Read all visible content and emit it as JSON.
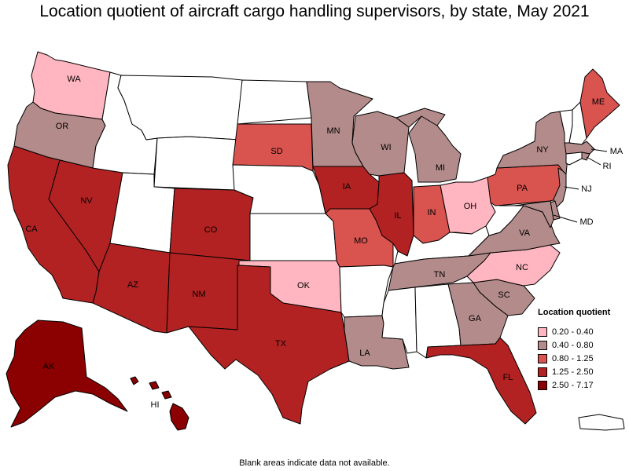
{
  "title": "Location quotient of aircraft cargo handling supervisors, by state, May 2021",
  "footnote": "Blank areas indicate data not available.",
  "legend": {
    "title": "Location quotient",
    "items": [
      {
        "label": "0.20 - 0.40",
        "color": "#ffb6c1"
      },
      {
        "label": "0.40 - 0.80",
        "color": "#b38b8b"
      },
      {
        "label": "0.80 - 1.25",
        "color": "#d9534f"
      },
      {
        "label": "1.25 - 2.50",
        "color": "#b22222"
      },
      {
        "label": "2.50 - 7.17",
        "color": "#8b0000"
      }
    ]
  },
  "no_data_color": "#ffffff",
  "states": [
    {
      "code": "WA",
      "label": "WA",
      "bin": 0
    },
    {
      "code": "OR",
      "label": "OR",
      "bin": 1
    },
    {
      "code": "CA",
      "label": "CA",
      "bin": 3
    },
    {
      "code": "NV",
      "label": "NV",
      "bin": 3
    },
    {
      "code": "ID",
      "label": "",
      "bin": null
    },
    {
      "code": "MT",
      "label": "",
      "bin": null
    },
    {
      "code": "WY",
      "label": "",
      "bin": null
    },
    {
      "code": "UT",
      "label": "",
      "bin": null
    },
    {
      "code": "AZ",
      "label": "AZ",
      "bin": 3
    },
    {
      "code": "CO",
      "label": "CO",
      "bin": 3
    },
    {
      "code": "NM",
      "label": "NM",
      "bin": 3
    },
    {
      "code": "ND",
      "label": "",
      "bin": null
    },
    {
      "code": "SD",
      "label": "SD",
      "bin": 2
    },
    {
      "code": "NE",
      "label": "",
      "bin": null
    },
    {
      "code": "KS",
      "label": "",
      "bin": null
    },
    {
      "code": "OK",
      "label": "OK",
      "bin": 0
    },
    {
      "code": "TX",
      "label": "TX",
      "bin": 3
    },
    {
      "code": "MN",
      "label": "MN",
      "bin": 1
    },
    {
      "code": "IA",
      "label": "IA",
      "bin": 3
    },
    {
      "code": "MO",
      "label": "MO",
      "bin": 2
    },
    {
      "code": "AR",
      "label": "",
      "bin": null
    },
    {
      "code": "LA",
      "label": "LA",
      "bin": 1
    },
    {
      "code": "WI",
      "label": "WI",
      "bin": 1
    },
    {
      "code": "IL",
      "label": "IL",
      "bin": 3
    },
    {
      "code": "MI",
      "label": "MI",
      "bin": 1
    },
    {
      "code": "IN",
      "label": "IN",
      "bin": 2
    },
    {
      "code": "OH",
      "label": "OH",
      "bin": 0
    },
    {
      "code": "KY",
      "label": "",
      "bin": null
    },
    {
      "code": "TN",
      "label": "TN",
      "bin": 1
    },
    {
      "code": "MS",
      "label": "",
      "bin": null
    },
    {
      "code": "AL",
      "label": "",
      "bin": null
    },
    {
      "code": "GA",
      "label": "GA",
      "bin": 1
    },
    {
      "code": "FL",
      "label": "FL",
      "bin": 3
    },
    {
      "code": "SC",
      "label": "SC",
      "bin": 1
    },
    {
      "code": "NC",
      "label": "NC",
      "bin": 0
    },
    {
      "code": "VA",
      "label": "VA",
      "bin": 1
    },
    {
      "code": "WV",
      "label": "",
      "bin": null
    },
    {
      "code": "PA",
      "label": "PA",
      "bin": 2
    },
    {
      "code": "NY",
      "label": "NY",
      "bin": 1
    },
    {
      "code": "VT",
      "label": "",
      "bin": null
    },
    {
      "code": "NH",
      "label": "",
      "bin": null
    },
    {
      "code": "ME",
      "label": "ME",
      "bin": 2
    },
    {
      "code": "MA",
      "label": "MA",
      "bin": 1
    },
    {
      "code": "RI",
      "label": "RI",
      "bin": 1
    },
    {
      "code": "CT",
      "label": "",
      "bin": null
    },
    {
      "code": "NJ",
      "label": "NJ",
      "bin": 1
    },
    {
      "code": "DE",
      "label": "",
      "bin": 1
    },
    {
      "code": "MD",
      "label": "MD",
      "bin": 1
    },
    {
      "code": "AK",
      "label": "AK",
      "bin": 4
    },
    {
      "code": "HI",
      "label": "HI",
      "bin": 4
    },
    {
      "code": "PR",
      "label": "",
      "bin": null
    }
  ]
}
